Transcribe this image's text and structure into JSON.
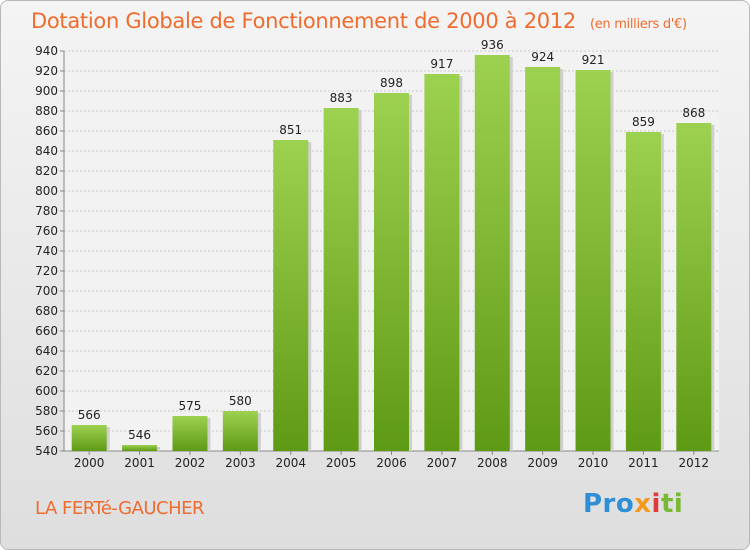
{
  "chart_data": {
    "type": "bar",
    "title": "Dotation Globale de Fonctionnement de 2000 à 2012",
    "subtitle": "(en milliers d'€)",
    "categories": [
      "2000",
      "2001",
      "2002",
      "2003",
      "2004",
      "2005",
      "2006",
      "2007",
      "2008",
      "2009",
      "2010",
      "2011",
      "2012"
    ],
    "values": [
      566,
      546,
      575,
      580,
      851,
      883,
      898,
      917,
      936,
      924,
      921,
      859,
      868
    ],
    "ylim": [
      540,
      940
    ],
    "yticks": [
      540,
      560,
      580,
      600,
      620,
      640,
      660,
      680,
      700,
      720,
      740,
      760,
      780,
      800,
      820,
      840,
      860,
      880,
      900,
      920,
      940
    ],
    "xlabel": "",
    "ylabel": "",
    "grid": true,
    "bar_color": "#8cc63f"
  },
  "footer": {
    "city": "LA FERTé-GAUCHER",
    "logo": [
      "Pro",
      "x",
      "i",
      "ti"
    ]
  }
}
